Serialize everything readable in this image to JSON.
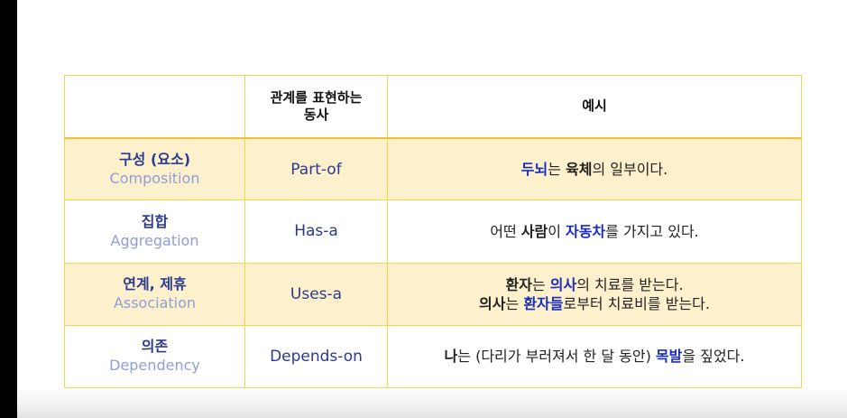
{
  "table": {
    "headers": {
      "col1": "",
      "col2_line1": "관계를 표현하는",
      "col2_line2": "동사",
      "col3": "예시"
    },
    "rows": [
      {
        "kr": "구성 (요소)",
        "en": "Composition",
        "verb": "Part-of",
        "example_lines": [
          [
            {
              "t": "두뇌",
              "hl": true
            },
            {
              "t": "는 ",
              "hl": false
            },
            {
              "t": "육체",
              "hl": false,
              "bold": true
            },
            {
              "t": "의 일부이다.",
              "hl": false
            }
          ]
        ]
      },
      {
        "kr": "집합",
        "en": "Aggregation",
        "verb": "Has-a",
        "example_lines": [
          [
            {
              "t": "어떤 ",
              "hl": false
            },
            {
              "t": "사람",
              "hl": false,
              "bold": true
            },
            {
              "t": "이 ",
              "hl": false
            },
            {
              "t": "자동차",
              "hl": true
            },
            {
              "t": "를 가지고 있다.",
              "hl": false
            }
          ]
        ]
      },
      {
        "kr": "연계, 제휴",
        "en": "Association",
        "verb": "Uses-a",
        "example_lines": [
          [
            {
              "t": "환자",
              "hl": false,
              "bold": true
            },
            {
              "t": "는 ",
              "hl": false
            },
            {
              "t": "의사",
              "hl": true
            },
            {
              "t": "의 치료를 받는다.",
              "hl": false
            }
          ],
          [
            {
              "t": "의사",
              "hl": false,
              "bold": true
            },
            {
              "t": "는 ",
              "hl": false
            },
            {
              "t": "환자들",
              "hl": true
            },
            {
              "t": "로부터 치료비를 받는다.",
              "hl": false
            }
          ]
        ]
      },
      {
        "kr": "의존",
        "en": "Dependency",
        "verb": "Depends-on",
        "example_lines": [
          [
            {
              "t": "나",
              "hl": false,
              "bold": true
            },
            {
              "t": "는 (다리가 부러져서 한 달 동안) ",
              "hl": false
            },
            {
              "t": "목발",
              "hl": true
            },
            {
              "t": "을 짚었다.",
              "hl": false
            }
          ]
        ]
      }
    ]
  },
  "colors": {
    "border": "#f7d34a",
    "row_fill": "#fdf0cc",
    "highlight": "#1a2dbf",
    "kr_label": "#2d3b8f",
    "en_label": "#8e9ed8"
  }
}
